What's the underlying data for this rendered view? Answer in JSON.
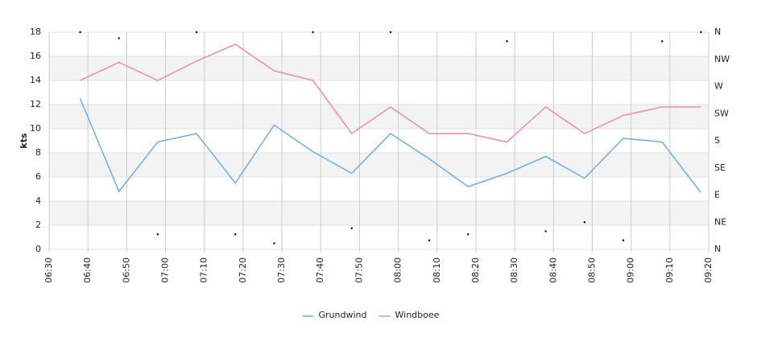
{
  "chart_data": {
    "type": "line",
    "ylabel": "kts",
    "x": [
      "06:38",
      "06:48",
      "06:58",
      "07:08",
      "07:18",
      "07:28",
      "07:38",
      "07:48",
      "07:58",
      "08:08",
      "08:18",
      "08:28",
      "08:38",
      "08:48",
      "08:58",
      "09:08",
      "09:18"
    ],
    "xlim": [
      "06:30",
      "09:20"
    ],
    "xticks": [
      "06:30",
      "06:40",
      "06:50",
      "07:00",
      "07:10",
      "07:20",
      "07:30",
      "07:40",
      "07:50",
      "08:00",
      "08:10",
      "08:20",
      "08:30",
      "08:40",
      "08:50",
      "09:00",
      "09:10",
      "09:20"
    ],
    "ylim": [
      0,
      18
    ],
    "yticks": [
      0,
      2,
      4,
      6,
      8,
      10,
      12,
      14,
      16,
      18
    ],
    "y2lim": [
      0,
      360
    ],
    "y2ticks": [
      {
        "value": 0,
        "label": "N"
      },
      {
        "value": 45,
        "label": "NE"
      },
      {
        "value": 90,
        "label": "E"
      },
      {
        "value": 135,
        "label": "SE"
      },
      {
        "value": 180,
        "label": "S"
      },
      {
        "value": 225,
        "label": "SW"
      },
      {
        "value": 270,
        "label": "W"
      },
      {
        "value": 315,
        "label": "NW"
      },
      {
        "value": 360,
        "label": "N"
      }
    ],
    "grid": true,
    "legend": "bottom",
    "series": [
      {
        "name": "Grundwind",
        "color": "#6aaee8",
        "values": [
          12.5,
          4.8,
          8.9,
          9.6,
          5.5,
          10.3,
          8.1,
          6.3,
          9.6,
          7.5,
          5.2,
          6.3,
          7.7,
          5.9,
          9.2,
          8.9,
          4.7
        ]
      },
      {
        "name": "Windboee",
        "color": "#ee88b4",
        "values": [
          14,
          15.5,
          14,
          15.6,
          17,
          14.8,
          14,
          9.6,
          11.8,
          9.6,
          9.6,
          8.9,
          11.8,
          9.6,
          11.1,
          11.8,
          11.8
        ]
      },
      {
        "color": "#000000",
        "axis": "y2",
        "marker": "dot",
        "values": [
          360,
          350,
          25,
          360,
          25,
          10,
          360,
          35,
          360,
          15,
          25,
          345,
          30,
          45,
          15,
          345,
          360
        ]
      }
    ]
  }
}
